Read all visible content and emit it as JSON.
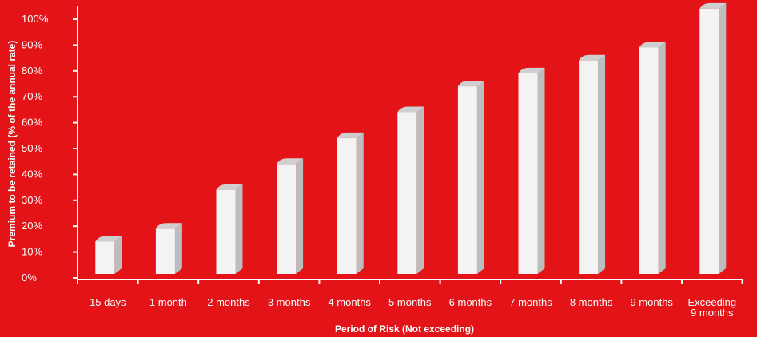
{
  "chart_data": {
    "type": "bar",
    "style": "3d-cylinder",
    "categories": [
      "15 days",
      "1 month",
      "2 months",
      "3 months",
      "4 months",
      "5 months",
      "6 months",
      "7 months",
      "8 months",
      "9 months",
      "Exceeding 9 months"
    ],
    "category_lines": [
      [
        "15 days"
      ],
      [
        "1 month"
      ],
      [
        "2 months"
      ],
      [
        "3 months"
      ],
      [
        "4 months"
      ],
      [
        "5 months"
      ],
      [
        "6 months"
      ],
      [
        "7 months"
      ],
      [
        "8 months"
      ],
      [
        "9 months"
      ],
      [
        "Exceeding",
        "9 months"
      ]
    ],
    "values": [
      12.5,
      17.5,
      32.5,
      42.5,
      52.5,
      62.5,
      72.5,
      77.5,
      82.5,
      87.5,
      102.5
    ],
    "yticks": [
      "0%",
      "10%",
      "20%",
      "30%",
      "40%",
      "50%",
      "60%",
      "70%",
      "80%",
      "90%",
      "100%"
    ],
    "ylim": [
      0,
      100
    ],
    "xlabel": "Period of Risk (Not exceeding)",
    "ylabel": "Premium to be retained (% of the annual  rate)",
    "grid": false,
    "colors": {
      "background": "#e31318",
      "bar_front": "#f3f3f3",
      "bar_side": "#bdbdbd",
      "bar_top": "#cfcfcf",
      "axis": "#ffffff",
      "text": "#ffffff"
    }
  }
}
